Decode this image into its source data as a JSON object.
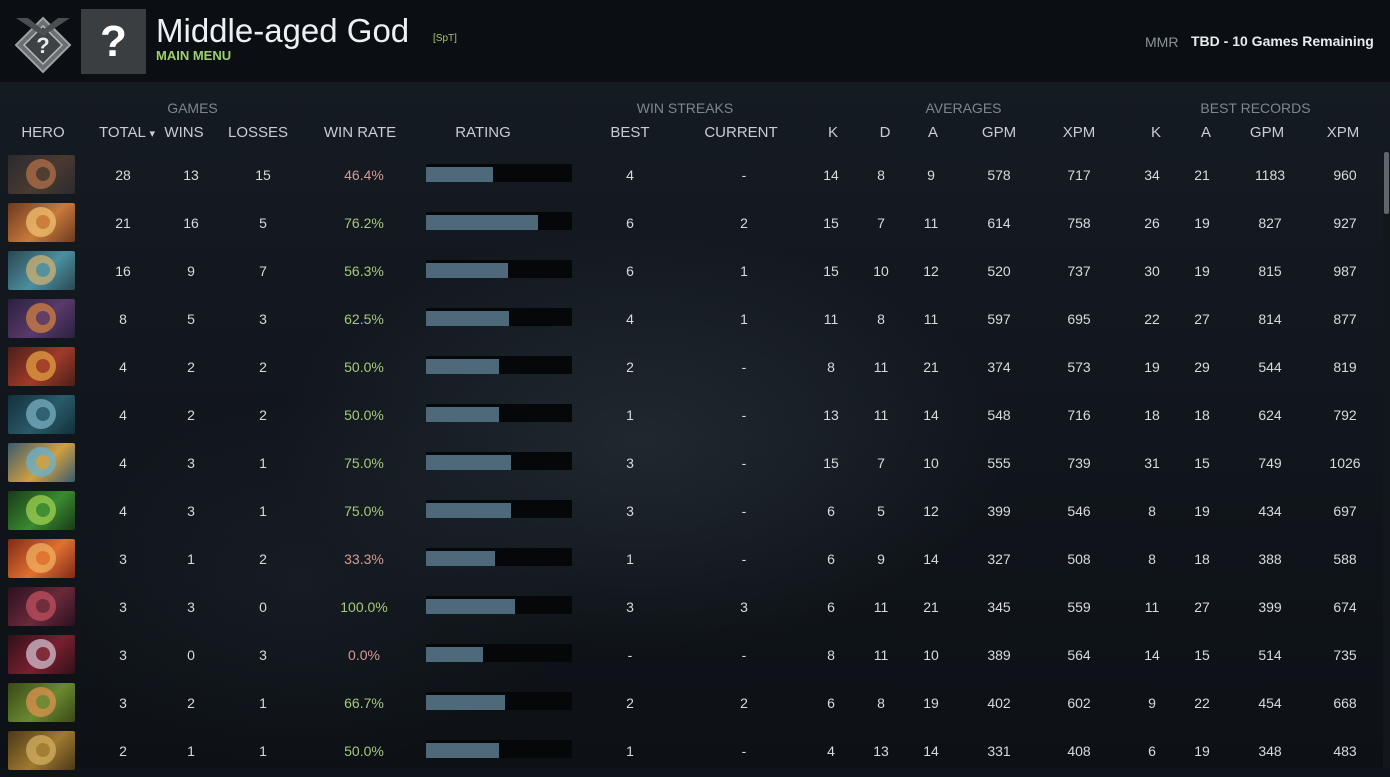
{
  "header": {
    "player_name": "Middle-aged God",
    "player_tag": "[SpT]",
    "main_menu": "MAIN MENU",
    "avatar_glyph": "?",
    "mmr_label": "MMR",
    "mmr_value": "TBD - 10 Games Remaining"
  },
  "columns": {
    "groups": {
      "games": "GAMES",
      "win_streaks": "WIN STREAKS",
      "averages": "AVERAGES",
      "best_records": "BEST RECORDS"
    },
    "hero": "HERO",
    "total": "TOTAL",
    "sort_icon": "▾",
    "wins": "WINS",
    "losses": "LOSSES",
    "win_rate": "WIN RATE",
    "rating": "RATING",
    "best": "BEST",
    "current": "CURRENT",
    "avg_k": "K",
    "avg_d": "D",
    "avg_a": "A",
    "avg_gpm": "GPM",
    "avg_xpm": "XPM",
    "best_k": "K",
    "best_a": "A",
    "best_gpm": "GPM",
    "best_xpm": "XPM"
  },
  "colors": {
    "win_rate_good": "#a6c97a",
    "win_rate_bad": "#d49a96",
    "rating_bar": "#4e6a7a",
    "main_menu": "#9fcf6a"
  },
  "rows": [
    {
      "hero_icon": "brewmaster-portrait-icon",
      "icon_colors": [
        "#4a3a30",
        "#b07048",
        "#2a2a30"
      ],
      "total": "28",
      "wins": "13",
      "losses": "15",
      "win_rate": "46.4%",
      "rating": 0.46,
      "best": "4",
      "current": "-",
      "k": "14",
      "d": "8",
      "a": "9",
      "gpm": "578",
      "xpm": "717",
      "best_k": "34",
      "best_a": "21",
      "best_gpm": "1183",
      "best_xpm": "960"
    },
    {
      "hero_icon": "snapfire-portrait-icon",
      "icon_colors": [
        "#c97a3a",
        "#f0c070",
        "#6b3a20"
      ],
      "total": "21",
      "wins": "16",
      "losses": "5",
      "win_rate": "76.2%",
      "rating": 0.77,
      "best": "6",
      "current": "2",
      "k": "15",
      "d": "7",
      "a": "11",
      "gpm": "614",
      "xpm": "758",
      "best_k": "26",
      "best_a": "19",
      "best_gpm": "827",
      "best_xpm": "927"
    },
    {
      "hero_icon": "tiny-portrait-icon",
      "icon_colors": [
        "#4c8fa0",
        "#d0b070",
        "#2a4850"
      ],
      "total": "16",
      "wins": "9",
      "losses": "7",
      "win_rate": "56.3%",
      "rating": 0.56,
      "best": "6",
      "current": "1",
      "k": "15",
      "d": "10",
      "a": "12",
      "gpm": "520",
      "xpm": "737",
      "best_k": "30",
      "best_a": "19",
      "best_gpm": "815",
      "best_xpm": "987"
    },
    {
      "hero_icon": "anti-mage-portrait-icon",
      "icon_colors": [
        "#5a3a6a",
        "#d08040",
        "#2a2040"
      ],
      "total": "8",
      "wins": "5",
      "losses": "3",
      "win_rate": "62.5%",
      "rating": 0.57,
      "best": "4",
      "current": "1",
      "k": "11",
      "d": "8",
      "a": "11",
      "gpm": "597",
      "xpm": "695",
      "best_k": "22",
      "best_a": "27",
      "best_gpm": "814",
      "best_xpm": "877"
    },
    {
      "hero_icon": "legion-commander-portrait-icon",
      "icon_colors": [
        "#a03a2a",
        "#e0a040",
        "#4a2018"
      ],
      "total": "4",
      "wins": "2",
      "losses": "2",
      "win_rate": "50.0%",
      "rating": 0.5,
      "best": "2",
      "current": "-",
      "k": "8",
      "d": "11",
      "a": "21",
      "gpm": "374",
      "xpm": "573",
      "best_k": "19",
      "best_a": "29",
      "best_gpm": "544",
      "best_xpm": "819"
    },
    {
      "hero_icon": "phantom-assassin-portrait-icon",
      "icon_colors": [
        "#2a5a6a",
        "#7ab0c0",
        "#12303a"
      ],
      "total": "4",
      "wins": "2",
      "losses": "2",
      "win_rate": "50.0%",
      "rating": 0.5,
      "best": "1",
      "current": "-",
      "k": "13",
      "d": "11",
      "a": "14",
      "gpm": "548",
      "xpm": "716",
      "best_k": "18",
      "best_a": "18",
      "best_gpm": "624",
      "best_xpm": "792"
    },
    {
      "hero_icon": "crystal-maiden-portrait-icon",
      "icon_colors": [
        "#d0a040",
        "#6ab0d0",
        "#3a5a70"
      ],
      "total": "4",
      "wins": "3",
      "losses": "1",
      "win_rate": "75.0%",
      "rating": 0.58,
      "best": "3",
      "current": "-",
      "k": "15",
      "d": "7",
      "a": "10",
      "gpm": "555",
      "xpm": "739",
      "best_k": "31",
      "best_a": "15",
      "best_gpm": "749",
      "best_xpm": "1026"
    },
    {
      "hero_icon": "venomancer-portrait-icon",
      "icon_colors": [
        "#3a8a30",
        "#a0d050",
        "#1a3a18"
      ],
      "total": "4",
      "wins": "3",
      "losses": "1",
      "win_rate": "75.0%",
      "rating": 0.58,
      "best": "3",
      "current": "-",
      "k": "6",
      "d": "5",
      "a": "12",
      "gpm": "399",
      "xpm": "546",
      "best_k": "8",
      "best_a": "19",
      "best_gpm": "434",
      "best_xpm": "697"
    },
    {
      "hero_icon": "lina-portrait-icon",
      "icon_colors": [
        "#e07030",
        "#f0b060",
        "#802a18"
      ],
      "total": "3",
      "wins": "1",
      "losses": "2",
      "win_rate": "33.3%",
      "rating": 0.47,
      "best": "1",
      "current": "-",
      "k": "6",
      "d": "9",
      "a": "14",
      "gpm": "327",
      "xpm": "508",
      "best_k": "8",
      "best_a": "18",
      "best_gpm": "388",
      "best_xpm": "588"
    },
    {
      "hero_icon": "shadow-demon-portrait-icon",
      "icon_colors": [
        "#6a2a3a",
        "#c05060",
        "#2a1020"
      ],
      "total": "3",
      "wins": "3",
      "losses": "0",
      "win_rate": "100.0%",
      "rating": 0.61,
      "best": "3",
      "current": "3",
      "k": "6",
      "d": "11",
      "a": "21",
      "gpm": "345",
      "xpm": "559",
      "best_k": "11",
      "best_a": "27",
      "best_gpm": "399",
      "best_xpm": "674"
    },
    {
      "hero_icon": "queen-of-pain-portrait-icon",
      "icon_colors": [
        "#7a2030",
        "#d0c0d0",
        "#301018"
      ],
      "total": "3",
      "wins": "0",
      "losses": "3",
      "win_rate": "0.0%",
      "rating": 0.39,
      "best": "-",
      "current": "-",
      "k": "8",
      "d": "11",
      "a": "10",
      "gpm": "389",
      "xpm": "564",
      "best_k": "14",
      "best_a": "15",
      "best_gpm": "514",
      "best_xpm": "735"
    },
    {
      "hero_icon": "windranger-portrait-icon",
      "icon_colors": [
        "#6a8a30",
        "#e09050",
        "#3a4818"
      ],
      "total": "3",
      "wins": "2",
      "losses": "1",
      "win_rate": "66.7%",
      "rating": 0.54,
      "best": "2",
      "current": "2",
      "k": "6",
      "d": "8",
      "a": "19",
      "gpm": "402",
      "xpm": "602",
      "best_k": "9",
      "best_a": "22",
      "best_gpm": "454",
      "best_xpm": "668"
    },
    {
      "hero_icon": "clockwerk-portrait-icon",
      "icon_colors": [
        "#a07a30",
        "#d0b060",
        "#4a3818"
      ],
      "total": "2",
      "wins": "1",
      "losses": "1",
      "win_rate": "50.0%",
      "rating": 0.5,
      "best": "1",
      "current": "-",
      "k": "4",
      "d": "13",
      "a": "14",
      "gpm": "331",
      "xpm": "408",
      "best_k": "6",
      "best_a": "19",
      "best_gpm": "348",
      "best_xpm": "483"
    }
  ]
}
